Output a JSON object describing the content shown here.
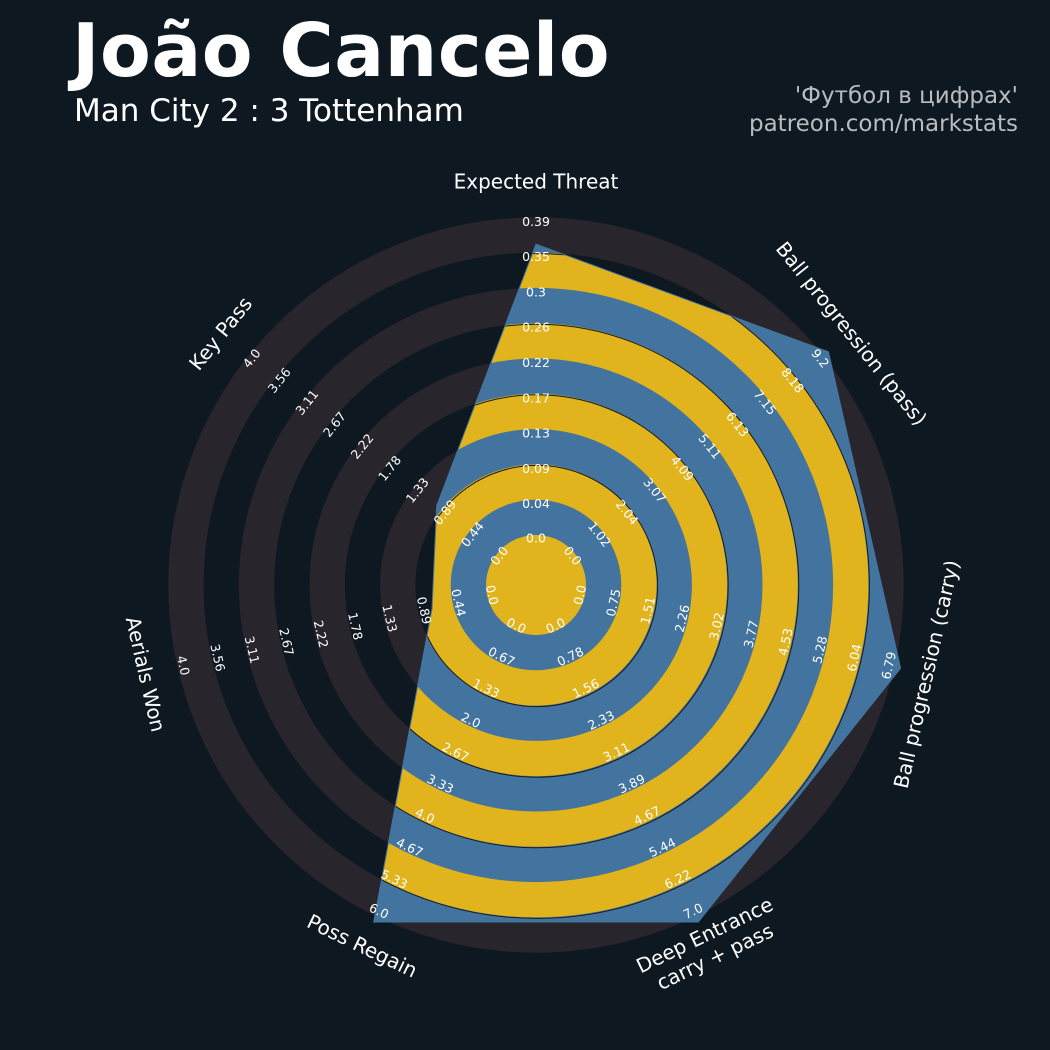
{
  "header": {
    "player_name": "João Cancelo",
    "match": "Man City 2 : 3 Tottenham",
    "credit_line1": "'Футбол в цифрах'",
    "credit_line2": "patreon.com/markstats"
  },
  "colors": {
    "background": "#0e1821",
    "ring_dark": "#29252c",
    "ring_gold": "#e1b31c",
    "polygon_fill": "#42749f",
    "label_text": "#ffffff"
  },
  "chart_data": {
    "type": "radar",
    "title": "João Cancelo",
    "subtitle": "Man City 2 : 3 Tottenham",
    "grid": true,
    "axes": [
      {
        "name": "Expected Threat",
        "label_lines": [
          "Expected Threat"
        ],
        "value": 0.35,
        "range": [
          0.0,
          0.39
        ],
        "ticks": [
          "0.0",
          "0.04",
          "0.09",
          "0.13",
          "0.17",
          "0.22",
          "0.26",
          "0.3",
          "0.35",
          "0.39"
        ]
      },
      {
        "name": "Ball progression (pass)",
        "label_lines": [
          "Ball progression (pass)"
        ],
        "value": 9.2,
        "range": [
          0.0,
          9.2
        ],
        "ticks": [
          "0.0",
          "1.02",
          "2.04",
          "3.07",
          "4.09",
          "5.11",
          "6.13",
          "7.15",
          "8.18",
          "9.2"
        ]
      },
      {
        "name": "Ball progression (carry)",
        "label_lines": [
          "Ball progression (carry)"
        ],
        "value": 6.79,
        "range": [
          0.0,
          6.79
        ],
        "ticks": [
          "0.0",
          "0.75",
          "1.51",
          "2.26",
          "3.02",
          "3.77",
          "4.53",
          "5.28",
          "6.04",
          "6.79"
        ]
      },
      {
        "name": "Deep Entrance carry + pass",
        "label_lines": [
          "Deep Entrance",
          "carry + pass"
        ],
        "value": 7.0,
        "range": [
          0.0,
          7.0
        ],
        "ticks": [
          "0.0",
          "0.78",
          "1.56",
          "2.33",
          "3.11",
          "3.89",
          "4.67",
          "5.44",
          "6.22",
          "7.0"
        ]
      },
      {
        "name": "Poss Regain",
        "label_lines": [
          "Poss Regain"
        ],
        "value": 6.0,
        "range": [
          0.0,
          6.0
        ],
        "ticks": [
          "0.0",
          "0.67",
          "1.33",
          "2.0",
          "2.67",
          "3.33",
          "4.0",
          "4.67",
          "5.33",
          "6.0"
        ]
      },
      {
        "name": "Aerials Won",
        "label_lines": [
          "Aerials Won"
        ],
        "value": 0.7,
        "range": [
          0.0,
          4.0
        ],
        "ticks": [
          "0.0",
          "0.44",
          "0.89",
          "1.33",
          "1.78",
          "2.22",
          "2.67",
          "3.11",
          "3.56",
          "4.0"
        ]
      },
      {
        "name": "Key Pass",
        "label_lines": [
          "Key Pass"
        ],
        "value": 0.95,
        "range": [
          0.0,
          4.0
        ],
        "ticks": [
          "0.0",
          "0.44",
          "0.89",
          "1.33",
          "1.78",
          "2.22",
          "2.67",
          "3.11",
          "3.56",
          "4.0"
        ]
      }
    ]
  }
}
